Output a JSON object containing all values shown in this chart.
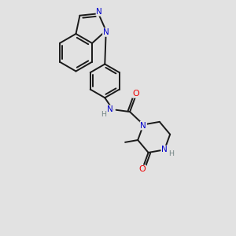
{
  "background_color": "#e2e2e2",
  "bond_color": "#1a1a1a",
  "nitrogen_color": "#0000cc",
  "oxygen_color": "#ee0000",
  "bond_width": 1.4,
  "figsize": [
    3.0,
    3.0
  ],
  "dpi": 100,
  "xlim": [
    0,
    10
  ],
  "ylim": [
    0,
    10
  ]
}
